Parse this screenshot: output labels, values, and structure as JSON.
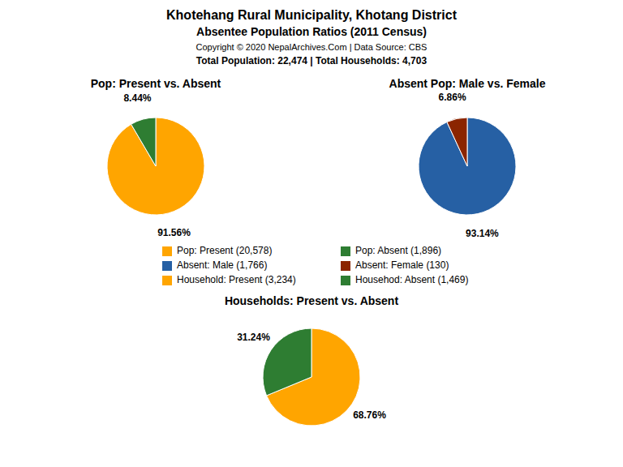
{
  "title": "Khotehang Rural Municipality, Khotang District",
  "subtitle": "Absentee Population Ratios (2011 Census)",
  "annotations": [
    "Copyright © 2020 NepalArchives.Com | Data Source: CBS",
    "Total Population: 22,474 | Total Households: 4,703"
  ],
  "chart_data": [
    {
      "type": "pie",
      "title": "Pop: Present vs. Absent",
      "categories": [
        "Pop: Present (20,578)",
        "Pop: Absent (1,896)"
      ],
      "values": [
        91.56,
        8.44
      ],
      "value_labels": [
        "91.56%",
        "8.44%"
      ],
      "colors": [
        "#FFA500",
        "#2E7D32"
      ],
      "data_labels": true,
      "legend": "center"
    },
    {
      "type": "pie",
      "title": "Absent Pop: Male vs. Female",
      "categories": [
        "Absent: Male (1,766)",
        "Absent: Female (130)"
      ],
      "values": [
        93.14,
        6.86
      ],
      "value_labels": [
        "93.14%",
        "6.86%"
      ],
      "colors": [
        "#2660A4",
        "#8B2500"
      ],
      "data_labels": true,
      "legend": "center"
    },
    {
      "type": "pie",
      "title": "Households: Present vs. Absent",
      "categories": [
        "Household: Present (3,234)",
        "Househod: Absent (1,469)"
      ],
      "values": [
        68.76,
        31.24
      ],
      "value_labels": [
        "68.76%",
        "31.24%"
      ],
      "colors": [
        "#FFA500",
        "#2E7D32"
      ],
      "data_labels": true,
      "legend": "center"
    }
  ]
}
